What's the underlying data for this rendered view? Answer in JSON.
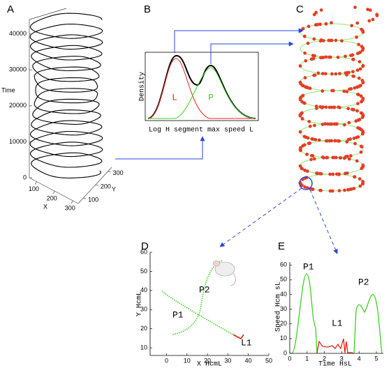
{
  "panels": {
    "A": {
      "label": "A",
      "time_label": "Time",
      "x_label": "X",
      "y_label": "Y",
      "time_ticks": [
        0,
        10000,
        20000,
        30000,
        40000
      ],
      "x_ticks": [
        100,
        200,
        300
      ],
      "y_ticks": [
        100,
        200,
        300
      ],
      "time_lim": [
        0,
        44000
      ],
      "x_lim": [
        60,
        330
      ],
      "y_lim": [
        60,
        330
      ]
    },
    "B": {
      "label": "B",
      "y_label": "Density",
      "x_label": "Log H segment max speed L",
      "curve_labels": [
        "L",
        "P"
      ]
    },
    "C": {
      "label": "C"
    },
    "D": {
      "label": "D",
      "x_label": "X HcmL",
      "y_label": "Y HcmL",
      "xticks": [
        0,
        10,
        20,
        30,
        40,
        50
      ],
      "yticks": [
        10,
        20,
        30,
        40,
        50,
        60
      ],
      "xlim": [
        -8,
        50
      ],
      "ylim": [
        6,
        60
      ],
      "annotations": [
        "P1",
        "P2",
        "L1"
      ]
    },
    "E": {
      "label": "E",
      "x_label": "Time HsL",
      "y_label": "Speed Hcm sL",
      "xticks": [
        0,
        1,
        2,
        3,
        4,
        5
      ],
      "yticks": [
        0,
        10,
        20,
        30,
        40,
        50,
        60
      ],
      "xlim": [
        0,
        5.4
      ],
      "ylim": [
        0,
        62
      ],
      "annotations": [
        "P1",
        "L1",
        "P2"
      ]
    }
  }
}
